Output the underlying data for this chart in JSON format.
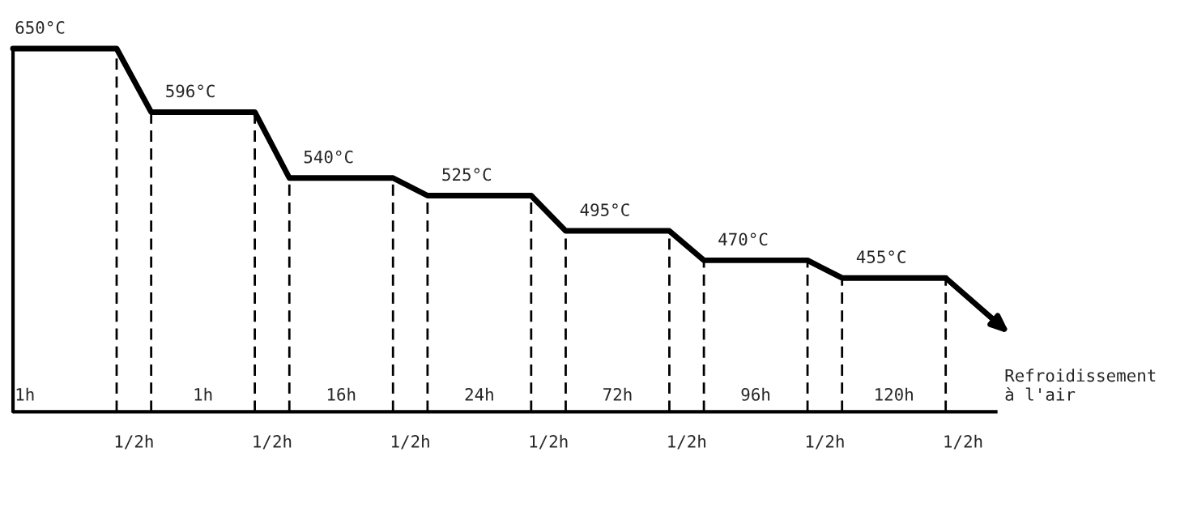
{
  "chart_data": {
    "type": "other",
    "categories": [
      "1h",
      "1/2h",
      "1h",
      "1/2h",
      "16h",
      "1/2h",
      "24h",
      "1/2h",
      "72h",
      "1/2h",
      "96h",
      "1/2h",
      "120h",
      "1/2h"
    ],
    "values": [
      650,
      null,
      596,
      null,
      540,
      null,
      525,
      null,
      495,
      null,
      470,
      null,
      455,
      null
    ],
    "value_labels": [
      "650°C",
      null,
      "596°C",
      null,
      "540°C",
      null,
      "525°C",
      null,
      "495°C",
      null,
      "470°C",
      null,
      "455°C",
      null
    ],
    "annotations": [
      "Refroidissement à l'air"
    ]
  }
}
